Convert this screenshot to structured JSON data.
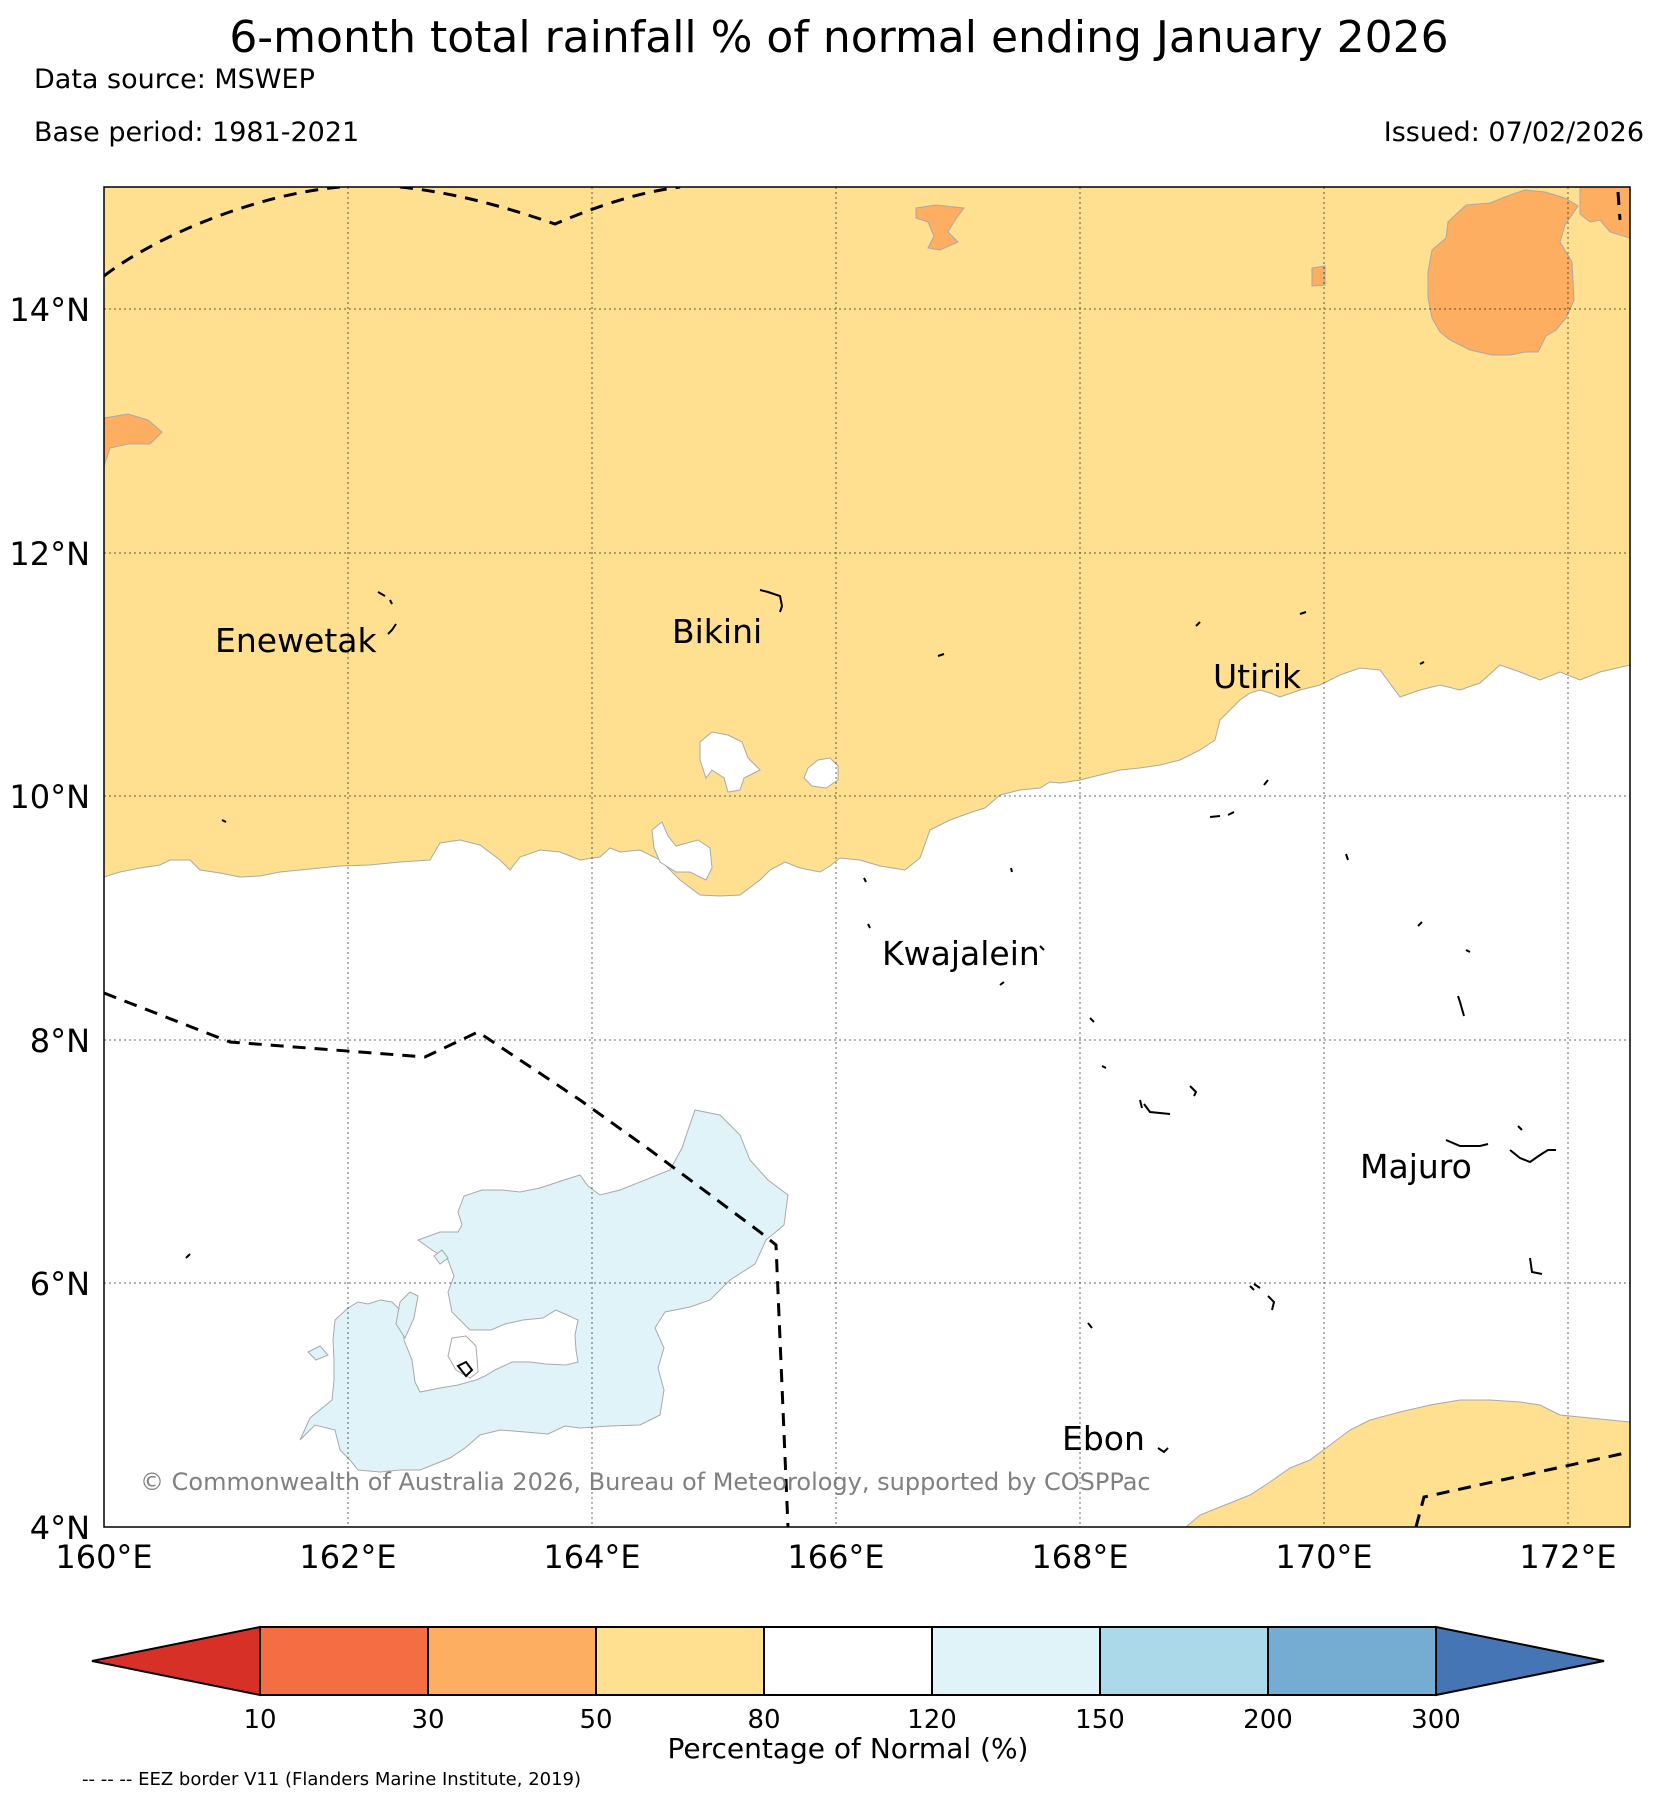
{
  "header": {
    "title": "6-month total rainfall % of normal ending January 2026",
    "source": "Data source: MSWEP",
    "base_period": "Base period: 1981-2021",
    "issued": "Issued: 07/02/2026"
  },
  "map": {
    "lon_range": [
      160,
      172.5
    ],
    "lat_range": [
      4,
      15
    ],
    "x_ticks": [
      "160°E",
      "162°E",
      "164°E",
      "166°E",
      "168°E",
      "170°E",
      "172°E"
    ],
    "y_ticks": [
      "4°N",
      "6°N",
      "8°N",
      "10°N",
      "12°N",
      "14°N"
    ],
    "places": [
      {
        "name": "Enewetak"
      },
      {
        "name": "Bikini"
      },
      {
        "name": "Utirik"
      },
      {
        "name": "Kwajalein"
      },
      {
        "name": "Majuro"
      },
      {
        "name": "Ebon"
      }
    ],
    "copyright": "© Commonwealth of Australia 2026, Bureau of Meteorology, supported by COSPPac",
    "eez_note": "-- -- -- EEZ border V11 (Flanders Marine Institute, 2019)"
  },
  "colorbar": {
    "label": "Percentage of Normal (%)",
    "ticks": [
      "10",
      "30",
      "50",
      "80",
      "120",
      "150",
      "200",
      "300"
    ],
    "colors": [
      "#d73027",
      "#f46d43",
      "#fdae61",
      "#fee090",
      "#ffffff",
      "#e0f3f8",
      "#abd9e9",
      "#74add1",
      "#4575b4"
    ]
  },
  "chart_data": {
    "type": "heatmap",
    "title": "6-month total rainfall % of normal ending January 2026",
    "xlabel": "",
    "ylabel": "",
    "xlim": [
      160,
      172.5
    ],
    "ylim": [
      4,
      15
    ],
    "x_ticks": [
      160,
      162,
      164,
      166,
      168,
      170,
      172
    ],
    "y_ticks": [
      4,
      6,
      8,
      10,
      12,
      14
    ],
    "legend": {
      "title": "Percentage of Normal (%)",
      "bins": [
        10,
        30,
        50,
        80,
        120,
        150,
        200,
        300
      ]
    }
  }
}
